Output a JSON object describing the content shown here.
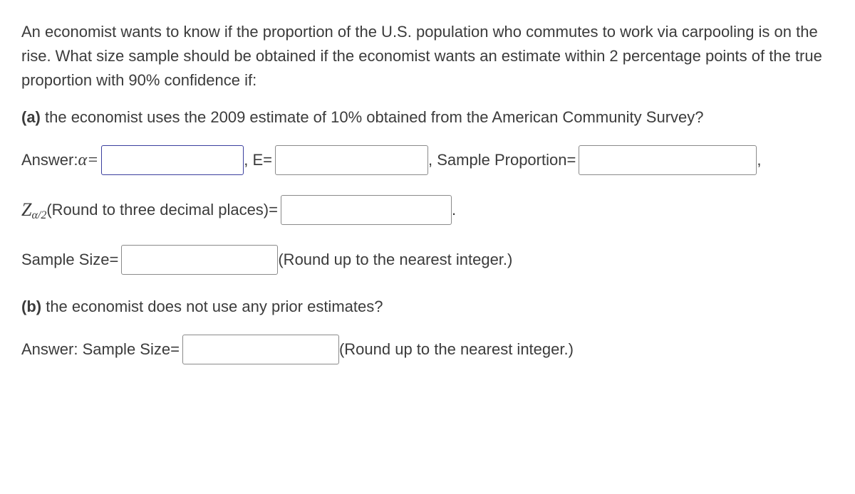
{
  "intro": "An economist wants to know if the proportion of the U.S. population who commutes to work via carpooling is on the rise. What size sample should be obtained if the economist wants an estimate within 2 percentage points of the true proportion with 90% confidence if:",
  "part_a": {
    "label": "(a)",
    "text": " the economist uses the 2009 estimate of 10% obtained from the American Community Survey?"
  },
  "row1": {
    "answer_prefix": "Answer: ",
    "alpha_label": "α=",
    "sep1": " , E=",
    "sep2": " , Sample Proportion=",
    "trail": " ,"
  },
  "row2": {
    "z_label_html": "Z",
    "z_sub": "α/2",
    "z_after": " (Round to three decimal places)=",
    "period": " ."
  },
  "row3": {
    "label": "Sample Size=",
    "after": " (Round up to the nearest integer.)"
  },
  "part_b": {
    "label": "(b)",
    "text": " the economist does not use any prior estimates?"
  },
  "row4": {
    "label": "Answer: Sample Size=",
    "after": " (Round up to the nearest integer.)"
  },
  "inputs": {
    "alpha": "",
    "E": "",
    "sample_prop": "",
    "z": "",
    "sample_size_a": "",
    "sample_size_b": ""
  },
  "style": {
    "font_color": "#3b3b3b",
    "active_border": "#3b3f9e",
    "input_border": "#8a8a8a",
    "font_size_body": 22
  }
}
